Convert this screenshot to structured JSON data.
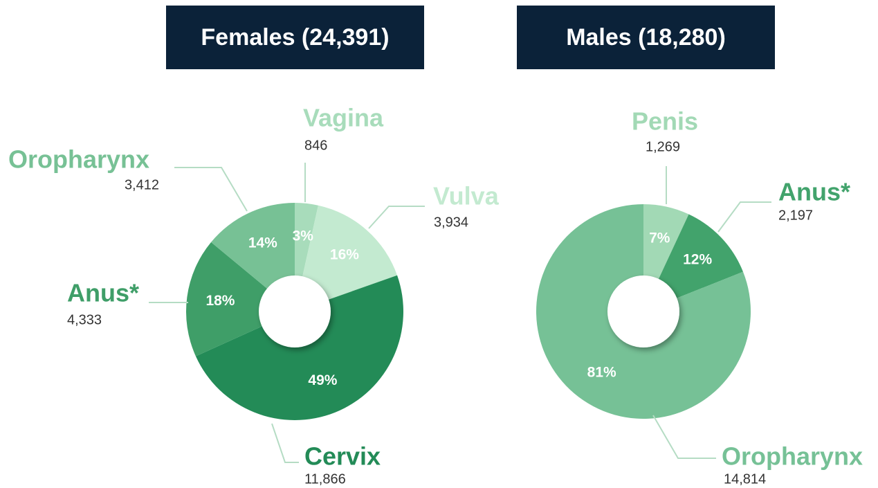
{
  "chart_data": [
    {
      "type": "pie",
      "title": "Females (24,391)",
      "categories": [
        "Vagina",
        "Vulva",
        "Cervix",
        "Anus*",
        "Oropharynx"
      ],
      "values": [
        846,
        3934,
        11866,
        4333,
        3412
      ],
      "value_labels": [
        "846",
        "3,934",
        "11,866",
        "4,333",
        "3,412"
      ],
      "percents": [
        3,
        16,
        49,
        18,
        14
      ],
      "percent_labels": [
        "3%",
        "16%",
        "49%",
        "18%",
        "14%"
      ],
      "colors": [
        "#a8dcbb",
        "#c3ead0",
        "#238b57",
        "#3f9e68",
        "#77c195"
      ]
    },
    {
      "type": "pie",
      "title": "Males (18,280)",
      "categories": [
        "Penis",
        "Anus*",
        "Oropharynx"
      ],
      "values": [
        1269,
        2197,
        14814
      ],
      "value_labels": [
        "1,269",
        "2,197",
        "14,814"
      ],
      "percents": [
        7,
        12,
        81
      ],
      "percent_labels": [
        "7%",
        "12%",
        "81%"
      ],
      "colors": [
        "#a2d9b5",
        "#42a36c",
        "#76c196"
      ]
    }
  ]
}
